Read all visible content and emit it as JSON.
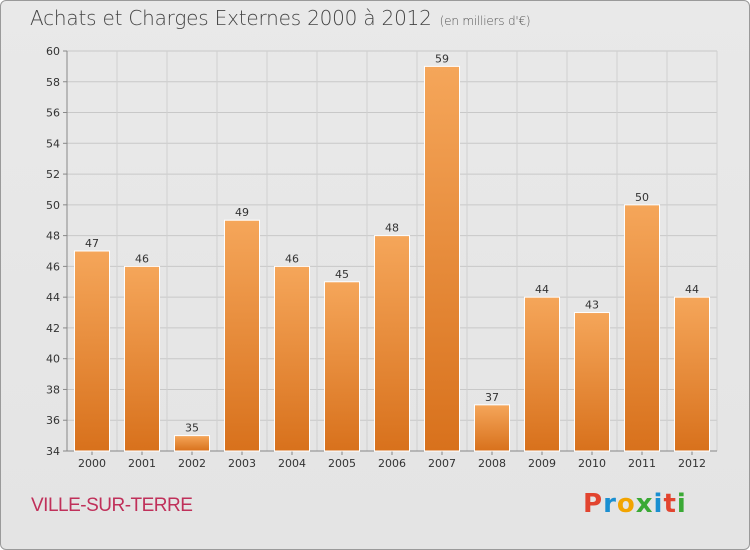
{
  "title": "Achats et Charges Externes 2000 à 2012",
  "unit": "(en milliers d'€)",
  "place": "VILLE-SUR-TERRE",
  "logo": {
    "text": "Proxiti",
    "colors": [
      "#e2442f",
      "#1a8fd1",
      "#f2a400",
      "#3aa935",
      "#1a8fd1",
      "#e2442f",
      "#3aa935"
    ]
  },
  "chart_data": {
    "type": "bar",
    "categories": [
      "2000",
      "2001",
      "2002",
      "2003",
      "2004",
      "2005",
      "2006",
      "2007",
      "2008",
      "2009",
      "2010",
      "2011",
      "2012"
    ],
    "values": [
      47,
      46,
      35,
      49,
      46,
      45,
      48,
      59,
      37,
      44,
      43,
      50,
      44
    ],
    "ylim": [
      34,
      60
    ],
    "yticks": [
      34,
      36,
      38,
      40,
      42,
      44,
      46,
      48,
      50,
      52,
      54,
      56,
      58,
      60
    ],
    "grid": true,
    "bar_color_top": "#f5a65a",
    "bar_color_bottom": "#d8711c"
  }
}
